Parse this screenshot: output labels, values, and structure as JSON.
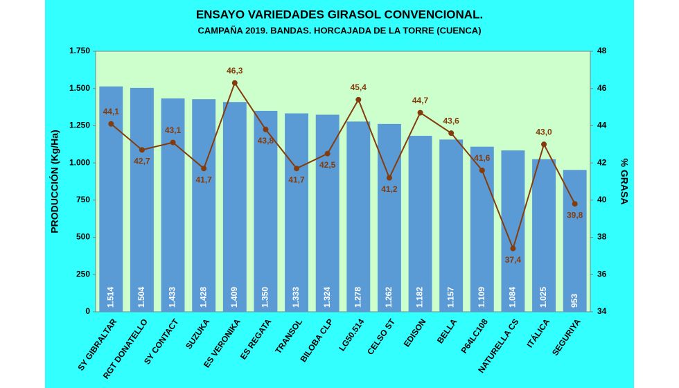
{
  "chart_data": {
    "type": "bar",
    "title": "ENSAYO VARIEDADES GIRASOL CONVENCIONAL.",
    "subtitle": "CAMPAÑA 2019.  BANDAS.  HORCAJADA DE LA TORRE (CUENCA)",
    "y_label": "PRODUCCIÓN (Kg/Ha)",
    "y2_label": "% GRASA",
    "categories": [
      "SY GIBRALTAR",
      "RGT DONATELLO",
      "SY CONTACT",
      "SUZUKA",
      "ES VERONIKA",
      "ES REGATA",
      "TRANSOL",
      "BILOBA CLP",
      "LG50.514",
      "CELSO ST",
      "EDISON",
      "BELLA",
      "P64LC108",
      "NATURELLA CS",
      "ITÁLICA",
      "SEGURIYA"
    ],
    "series": [
      {
        "type": "bar",
        "color": "#5b9bd5",
        "values": [
          1514,
          1504,
          1433,
          1428,
          1409,
          1350,
          1333,
          1324,
          1278,
          1262,
          1182,
          1157,
          1109,
          1084,
          1025,
          953
        ],
        "value_labels": [
          "1.514",
          "1.504",
          "1.433",
          "1.428",
          "1.409",
          "1.350",
          "1.333",
          "1.324",
          "1.278",
          "1.262",
          "1.182",
          "1.157",
          "1.109",
          "1.084",
          "1.025",
          "953"
        ]
      },
      {
        "type": "line",
        "axis": "y2",
        "color": "#843c0c",
        "values": [
          44.1,
          42.7,
          43.1,
          41.7,
          46.3,
          43.8,
          41.7,
          42.5,
          45.4,
          41.2,
          44.7,
          43.6,
          41.6,
          37.4,
          43.0,
          39.8
        ],
        "value_labels": [
          "44,1",
          "42,7",
          "43,1",
          "41,7",
          "46,3",
          "43,8",
          "41,7",
          "42,5",
          "45,4",
          "41,2",
          "44,7",
          "43,6",
          "41,6",
          "37,4",
          "43,0",
          "39,8"
        ]
      }
    ],
    "ylim": [
      0,
      1750
    ],
    "yticks": [
      0,
      250,
      500,
      750,
      {
        "value": 1000,
        "label": "1.000"
      },
      {
        "value": 1250,
        "label": "1.250"
      },
      {
        "value": 1500,
        "label": "1.500"
      },
      {
        "value": 1750,
        "label": "1.750"
      }
    ],
    "y2lim": [
      34,
      48
    ],
    "y2ticks": [
      34,
      36,
      38,
      40,
      42,
      44,
      46,
      48
    ],
    "grid": false
  }
}
